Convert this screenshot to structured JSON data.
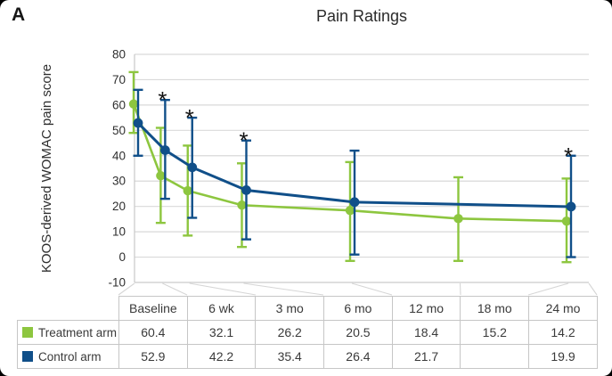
{
  "panel_label": "A",
  "title": "Pain Ratings",
  "colors": {
    "treatment_green": "#8DC63F",
    "control_blue": "#104F89",
    "grid": "#D9D9D9",
    "axis": "#C9C9C9",
    "connector": "#D6D6D6",
    "table_border": "#C6C6C6",
    "text": "#2F2F2F"
  },
  "chart_data": {
    "type": "line",
    "title": "Pain Ratings",
    "xlabel": "",
    "ylabel": "KOOS-derived WOMAC pain score",
    "ylim": [
      -10,
      80
    ],
    "ytick_step": 10,
    "grid": "horizontal",
    "legend_position": "table-left",
    "categories": [
      "Baseline",
      "6 wk",
      "3 mo",
      "6 mo",
      "12 mo",
      "18 mo",
      "24 mo"
    ],
    "x_months": [
      0,
      1.5,
      3,
      6,
      12,
      18,
      24
    ],
    "series": [
      {
        "name": "Treatment arm",
        "color": "#8DC63F",
        "values": [
          60.4,
          32.1,
          26.2,
          20.5,
          18.4,
          15.2,
          14.2
        ],
        "err_high": [
          73,
          51,
          44,
          37,
          37.5,
          31.5,
          31
        ],
        "err_low": [
          49,
          13.5,
          8.5,
          4,
          -1.5,
          -1.5,
          -2
        ]
      },
      {
        "name": "Control arm",
        "color": "#104F89",
        "values": [
          52.9,
          42.2,
          35.4,
          26.4,
          21.7,
          null,
          19.9
        ],
        "err_high": [
          66,
          62,
          55,
          46,
          42,
          null,
          40
        ],
        "err_low": [
          40,
          23,
          15.5,
          7,
          1,
          null,
          0
        ]
      }
    ],
    "significance_marker": "*",
    "significant_categories": [
      "6 wk",
      "3 mo",
      "6 mo",
      "24 mo"
    ],
    "table": {
      "row_labels": [
        "Treatment arm",
        "Control arm"
      ],
      "cells": [
        [
          "60.4",
          "32.1",
          "26.2",
          "20.5",
          "18.4",
          "15.2",
          "14.2"
        ],
        [
          "52.9",
          "42.2",
          "35.4",
          "26.4",
          "21.7",
          "",
          "19.9"
        ]
      ]
    }
  }
}
